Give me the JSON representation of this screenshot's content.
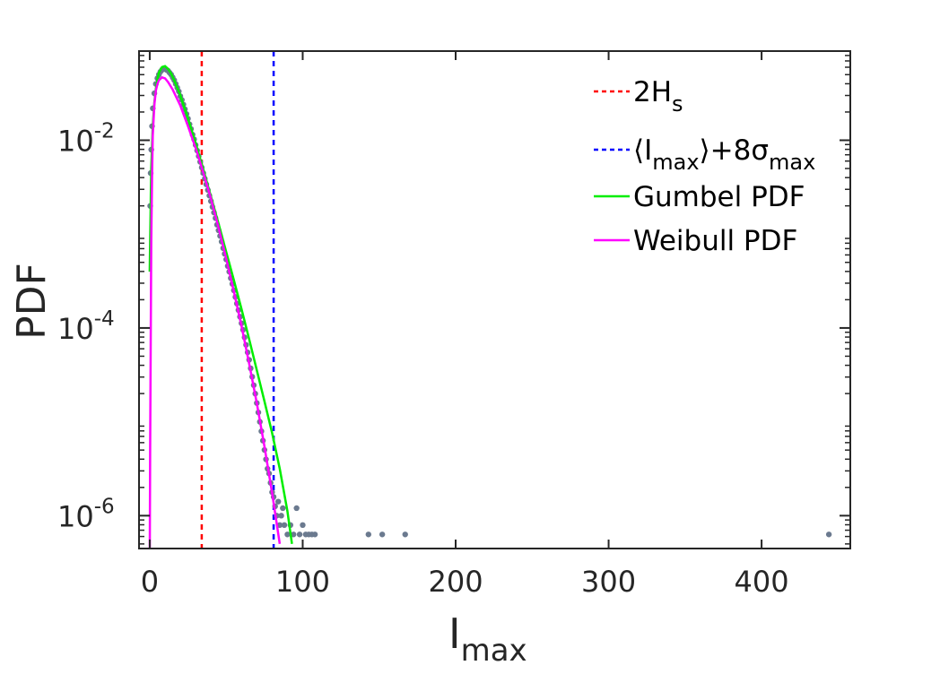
{
  "chart_data": {
    "type": "scatter",
    "title": "",
    "xlabel": {
      "main": "I",
      "sub": "max"
    },
    "ylabel": "PDF",
    "xlim": [
      -7,
      458
    ],
    "ylim_log10": [
      -6.35,
      -1.05
    ],
    "yscale": "log",
    "grid": false,
    "legend_position": "top-right",
    "x_ticks": [
      0,
      100,
      200,
      300,
      400
    ],
    "x_tick_labels": [
      "0",
      "100",
      "200",
      "300",
      "400"
    ],
    "y_ticks_log10": [
      -2,
      -4,
      -6
    ],
    "y_tick_labels": [
      {
        "base": "10",
        "exp": "-2"
      },
      {
        "base": "10",
        "exp": "-4"
      },
      {
        "base": "10",
        "exp": "-6"
      }
    ],
    "vlines": [
      {
        "x": 34,
        "color": "#ff0000",
        "style": "dashed"
      },
      {
        "x": 81,
        "color": "#0000ff",
        "style": "dashed"
      }
    ],
    "series": [
      {
        "kind": "points",
        "color": "#6b7a8f",
        "points": [
          [
            0.3,
            -2.7
          ],
          [
            0.6,
            -2.35
          ],
          [
            1,
            -2.1
          ],
          [
            1.5,
            -1.85
          ],
          [
            2,
            -1.66
          ],
          [
            3,
            -1.5
          ],
          [
            4,
            -1.4
          ],
          [
            5,
            -1.34
          ],
          [
            6,
            -1.3
          ],
          [
            7,
            -1.27
          ],
          [
            8,
            -1.25
          ],
          [
            9,
            -1.24
          ],
          [
            10,
            -1.24
          ],
          [
            11,
            -1.25
          ],
          [
            12,
            -1.26
          ],
          [
            13,
            -1.28
          ],
          [
            14,
            -1.3
          ],
          [
            15,
            -1.33
          ],
          [
            16,
            -1.36
          ],
          [
            17,
            -1.4
          ],
          [
            18,
            -1.44
          ],
          [
            19,
            -1.48
          ],
          [
            20,
            -1.53
          ],
          [
            21,
            -1.57
          ],
          [
            22,
            -1.62
          ],
          [
            23,
            -1.67
          ],
          [
            24,
            -1.72
          ],
          [
            25,
            -1.77
          ],
          [
            26,
            -1.83
          ],
          [
            27,
            -1.88
          ],
          [
            28,
            -1.94
          ],
          [
            29,
            -1.99
          ],
          [
            30,
            -2.05
          ],
          [
            31,
            -2.11
          ],
          [
            32,
            -2.17
          ],
          [
            33,
            -2.23
          ],
          [
            34,
            -2.29
          ],
          [
            35,
            -2.35
          ],
          [
            36,
            -2.41
          ],
          [
            37,
            -2.47
          ],
          [
            38,
            -2.53
          ],
          [
            39,
            -2.59
          ],
          [
            40,
            -2.65
          ],
          [
            41,
            -2.71
          ],
          [
            42,
            -2.77
          ],
          [
            43,
            -2.83
          ],
          [
            44,
            -2.9
          ],
          [
            45,
            -2.96
          ],
          [
            46,
            -3.02
          ],
          [
            47,
            -3.08
          ],
          [
            48,
            -3.15
          ],
          [
            49,
            -3.21
          ],
          [
            50,
            -3.27
          ],
          [
            51,
            -3.34
          ],
          [
            52,
            -3.4
          ],
          [
            53,
            -3.47
          ],
          [
            54,
            -3.53
          ],
          [
            55,
            -3.6
          ],
          [
            56,
            -3.67
          ],
          [
            57,
            -3.74
          ],
          [
            58,
            -3.81
          ],
          [
            59,
            -3.88
          ],
          [
            60,
            -3.95
          ],
          [
            61,
            -4.02
          ],
          [
            62,
            -4.1
          ],
          [
            63,
            -4.18
          ],
          [
            64,
            -4.26
          ],
          [
            65,
            -4.34
          ],
          [
            66,
            -4.43
          ],
          [
            67,
            -4.52
          ],
          [
            68,
            -4.61
          ],
          [
            69,
            -4.7
          ],
          [
            70,
            -4.8
          ],
          [
            71,
            -4.9
          ],
          [
            72,
            -5.0
          ],
          [
            73,
            -5.1
          ],
          [
            74,
            -5.2
          ],
          [
            75,
            -5.3
          ],
          [
            76,
            -5.4
          ],
          [
            77,
            -5.5
          ],
          [
            78,
            -5.55
          ],
          [
            79,
            -5.65
          ],
          [
            80,
            -5.75
          ],
          [
            81,
            -5.8
          ],
          [
            82,
            -5.9
          ],
          [
            83,
            -6.0
          ],
          [
            84,
            -5.85
          ],
          [
            85,
            -6.1
          ],
          [
            86,
            -6.0
          ],
          [
            87,
            -5.92
          ],
          [
            88,
            -6.1
          ],
          [
            90,
            -6.2
          ],
          [
            92,
            -6.1
          ],
          [
            94,
            -6.2
          ],
          [
            96,
            -5.92
          ],
          [
            98,
            -6.2
          ],
          [
            100,
            -6.1
          ],
          [
            102,
            -6.2
          ],
          [
            104,
            -6.2
          ],
          [
            106,
            -6.2
          ],
          [
            108,
            -6.2
          ],
          [
            143,
            -6.2
          ],
          [
            152,
            -6.2
          ],
          [
            167,
            -6.2
          ],
          [
            444,
            -6.2
          ]
        ]
      },
      {
        "kind": "line",
        "name": "Gumbel PDF",
        "color": "#00ee00",
        "points": [
          [
            0,
            -3.4
          ],
          [
            1,
            -2.3
          ],
          [
            2,
            -1.85
          ],
          [
            3,
            -1.6
          ],
          [
            4,
            -1.45
          ],
          [
            5,
            -1.35
          ],
          [
            6,
            -1.28
          ],
          [
            8,
            -1.22
          ],
          [
            10,
            -1.21
          ],
          [
            12,
            -1.24
          ],
          [
            14,
            -1.29
          ],
          [
            16,
            -1.36
          ],
          [
            18,
            -1.44
          ],
          [
            20,
            -1.52
          ],
          [
            25,
            -1.77
          ],
          [
            30,
            -2.03
          ],
          [
            35,
            -2.31
          ],
          [
            40,
            -2.6
          ],
          [
            45,
            -2.89
          ],
          [
            50,
            -3.19
          ],
          [
            55,
            -3.49
          ],
          [
            60,
            -3.8
          ],
          [
            65,
            -4.12
          ],
          [
            70,
            -4.45
          ],
          [
            75,
            -4.78
          ],
          [
            80,
            -5.12
          ],
          [
            85,
            -5.5
          ],
          [
            90,
            -5.95
          ],
          [
            93,
            -6.3
          ]
        ]
      },
      {
        "kind": "line",
        "name": "Weibull PDF",
        "color": "#ff00ff",
        "points": [
          [
            0.05,
            -6.35
          ],
          [
            0.3,
            -5.3
          ],
          [
            0.6,
            -4.2
          ],
          [
            1,
            -3.1
          ],
          [
            1.5,
            -2.4
          ],
          [
            2,
            -1.95
          ],
          [
            3,
            -1.62
          ],
          [
            4,
            -1.47
          ],
          [
            5,
            -1.4
          ],
          [
            6,
            -1.36
          ],
          [
            8,
            -1.33
          ],
          [
            10,
            -1.34
          ],
          [
            12,
            -1.38
          ],
          [
            15,
            -1.46
          ],
          [
            20,
            -1.63
          ],
          [
            25,
            -1.85
          ],
          [
            30,
            -2.08
          ],
          [
            35,
            -2.34
          ],
          [
            40,
            -2.62
          ],
          [
            45,
            -2.93
          ],
          [
            50,
            -3.26
          ],
          [
            55,
            -3.61
          ],
          [
            60,
            -3.98
          ],
          [
            65,
            -4.38
          ],
          [
            70,
            -4.8
          ],
          [
            75,
            -5.26
          ],
          [
            80,
            -5.76
          ],
          [
            85,
            -6.3
          ]
        ]
      }
    ],
    "legend": [
      {
        "style": "dashed",
        "color": "#ff0000",
        "label_main": "2H",
        "label_sub": "s"
      },
      {
        "style": "dashed",
        "color": "#0000ff",
        "label_main": "⟨I",
        "label_sub": "max",
        "label_main2": "⟩+8σ",
        "label_sub2": "max"
      },
      {
        "style": "solid",
        "color": "#00ee00",
        "label_main": "Gumbel PDF"
      },
      {
        "style": "solid",
        "color": "#ff00ff",
        "label_main": "Weibull PDF"
      }
    ]
  }
}
